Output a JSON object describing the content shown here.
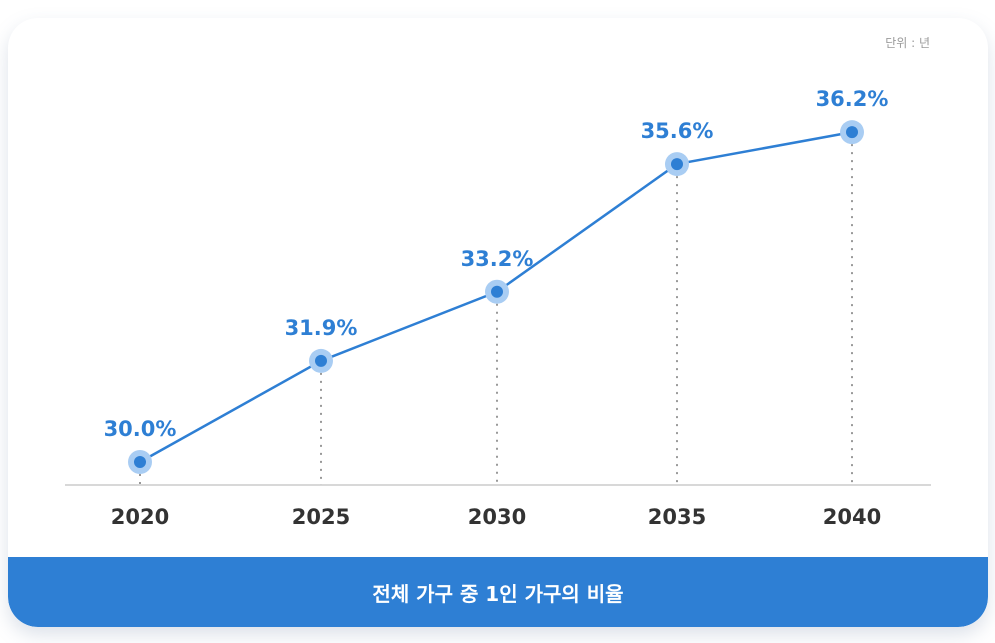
{
  "unit_label": "단위 : 년",
  "footer_title": "전체 가구 중 1인 가구의 비율",
  "colors": {
    "line": "#2e7fd4",
    "halo": "#a9cdf3",
    "banner": "#2e7fd4",
    "axis": "#cccccc",
    "guide": "#999999"
  },
  "chart_data": {
    "type": "line",
    "title": "전체 가구 중 1인 가구의 비율",
    "categories": [
      "2020",
      "2025",
      "2030",
      "2035",
      "2040"
    ],
    "values": [
      30.0,
      31.9,
      33.2,
      35.6,
      36.2
    ],
    "data_labels": [
      "30.0%",
      "31.9%",
      "33.2%",
      "35.6%",
      "36.2%"
    ],
    "grid": false,
    "legend": "none"
  }
}
